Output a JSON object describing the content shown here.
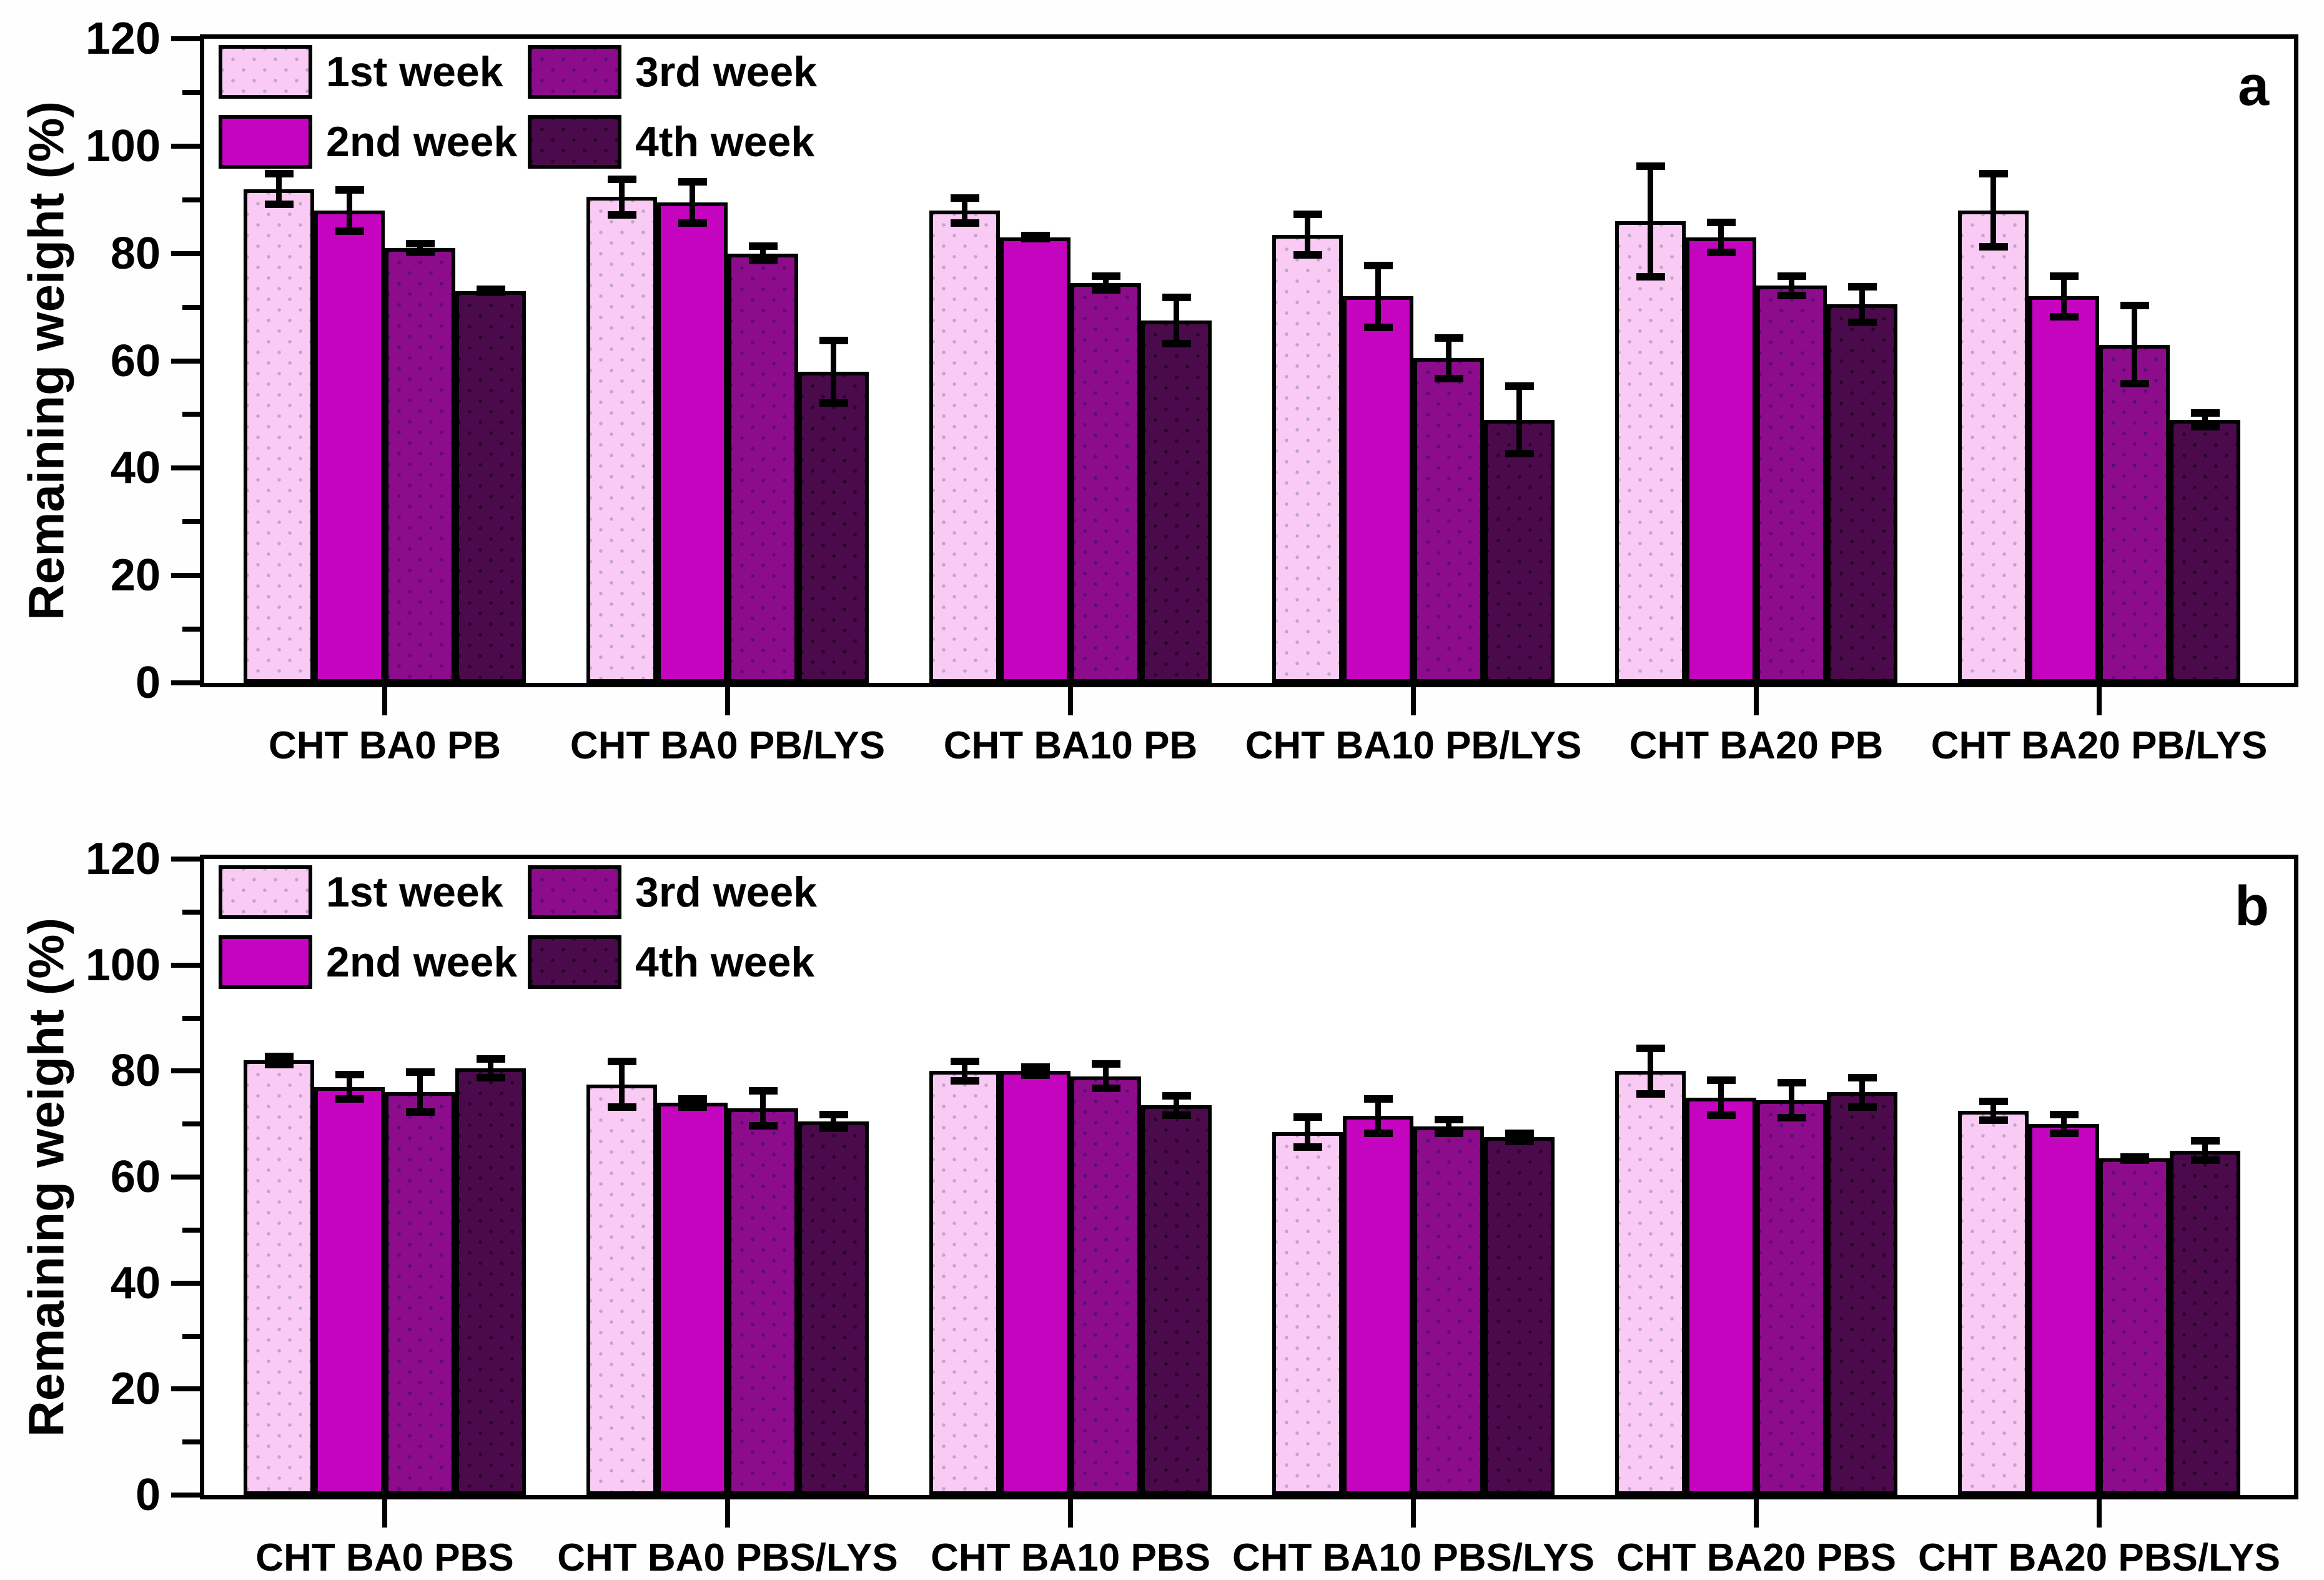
{
  "figure": {
    "ylabel": "Remaining weight (%)",
    "series_labels": [
      "1st week",
      "2nd week",
      "3rd week",
      "4th week"
    ],
    "series_colors": [
      "#F9CBF4",
      "#C404BE",
      "#8C0C8C",
      "#4B0A4B"
    ],
    "axis_color": "#000000",
    "background_color": "#FFFFFF",
    "ytick_labels": [
      "0",
      "20",
      "40",
      "60",
      "80",
      "100",
      "120"
    ]
  },
  "chart_data": [
    {
      "type": "bar",
      "panel_letter": "a",
      "ylabel": "Remaining weight (%)",
      "ylim": [
        0,
        120
      ],
      "ytick_step": 20,
      "grid": false,
      "legend_position": "top-left-inside",
      "categories": [
        "CHT BA0 PB",
        "CHT BA0 PB/LYS",
        "CHT BA10 PB",
        "CHT BA10 PB/LYS",
        "CHT BA20 PB",
        "CHT BA20 PB/LYS"
      ],
      "series": [
        {
          "name": "1st week",
          "values": [
            92,
            90.5,
            88,
            83.5,
            86,
            88
          ],
          "errors": [
            3.5,
            4,
            3,
            4.5,
            11,
            7.5
          ]
        },
        {
          "name": "2nd week",
          "values": [
            88,
            89.5,
            83,
            72,
            83,
            72
          ],
          "errors": [
            4.5,
            4.5,
            1,
            6.5,
            3.5,
            4.5
          ]
        },
        {
          "name": "3rd week",
          "values": [
            81,
            80,
            74.5,
            60.5,
            74,
            63
          ],
          "errors": [
            1.5,
            2,
            2,
            4.5,
            2.5,
            8
          ]
        },
        {
          "name": "4th week",
          "values": [
            73,
            58,
            67.5,
            49,
            70.5,
            49
          ],
          "errors": [
            1,
            6.5,
            5,
            7,
            4,
            2
          ]
        }
      ]
    },
    {
      "type": "bar",
      "panel_letter": "b",
      "ylabel": "Remaining weight (%)",
      "ylim": [
        0,
        120
      ],
      "ytick_step": 20,
      "grid": false,
      "legend_position": "top-left-inside",
      "categories": [
        "CHT BA0 PBS",
        "CHT BA0 PBS/LYS",
        "CHT BA10 PBS",
        "CHT BA10 PBS/LYS",
        "CHT BA20 PBS",
        "CHT BA20 PBS/LYS"
      ],
      "series": [
        {
          "name": "1st week",
          "values": [
            82,
            77.5,
            80,
            68.5,
            80,
            72.5
          ],
          "errors": [
            1.5,
            5,
            2.5,
            3.5,
            5,
            2.5
          ]
        },
        {
          "name": "2nd week",
          "values": [
            77,
            74,
            80,
            71.5,
            75,
            70
          ],
          "errors": [
            3,
            1.5,
            1.5,
            4,
            4,
            2.5
          ]
        },
        {
          "name": "3rd week",
          "values": [
            76,
            73,
            79,
            69.5,
            74.5,
            63.5
          ],
          "errors": [
            4.5,
            4,
            3,
            2,
            4,
            1
          ]
        },
        {
          "name": "4th week",
          "values": [
            80.5,
            70.5,
            73.5,
            67.5,
            76,
            65
          ],
          "errors": [
            2.5,
            2,
            2.5,
            1.5,
            3.5,
            2.5
          ]
        }
      ]
    }
  ]
}
